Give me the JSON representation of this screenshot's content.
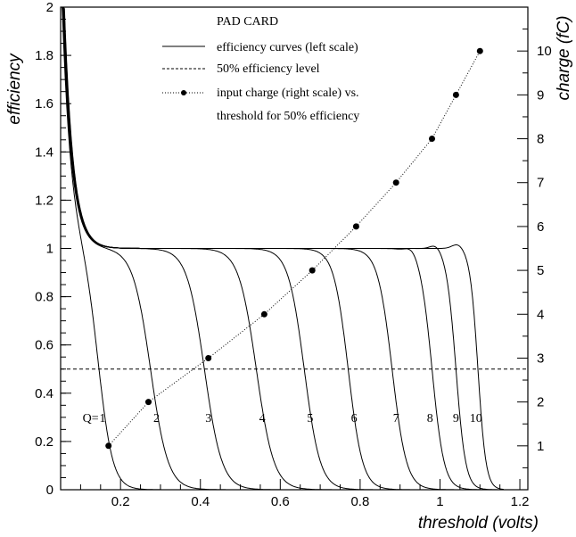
{
  "chart_data": {
    "type": "line",
    "xlabel": "threshold (volts)",
    "ylabel": "efficiency",
    "y2label": "charge (fC)",
    "xlim": [
      0.05,
      1.22
    ],
    "ylim": [
      0,
      2
    ],
    "y2lim": [
      0,
      11
    ],
    "x_ticks": [
      "0.2",
      "0.4",
      "0.6",
      "0.8",
      "1",
      "1.2"
    ],
    "y_ticks": [
      "0",
      "0.2",
      "0.4",
      "0.6",
      "0.8",
      "1",
      "1.2",
      "1.4",
      "1.6",
      "1.8",
      "2"
    ],
    "y2_ticks": [
      "1",
      "2",
      "3",
      "4",
      "5",
      "6",
      "7",
      "8",
      "9",
      "10"
    ],
    "legend_title": "PAD CARD",
    "legend": {
      "efficiency": "efficiency curves (left scale)",
      "level": "50% efficiency level",
      "charge_line1": "input charge (right scale) vs.",
      "charge_line2": "threshold for 50% efficiency"
    },
    "legend_position": "top-center",
    "q_prefix": "Q=",
    "efficiency_curves": [
      {
        "q": "1",
        "center": 0.145,
        "width": 0.018
      },
      {
        "q": "2",
        "center": 0.275,
        "width": 0.022
      },
      {
        "q": "3",
        "center": 0.41,
        "width": 0.022
      },
      {
        "q": "4",
        "center": 0.54,
        "width": 0.022
      },
      {
        "q": "5",
        "center": 0.66,
        "width": 0.02
      },
      {
        "q": "6",
        "center": 0.77,
        "width": 0.018
      },
      {
        "q": "7",
        "center": 0.88,
        "width": 0.018
      },
      {
        "q": "8",
        "center": 0.98,
        "width": 0.015
      },
      {
        "q": "9",
        "center": 1.04,
        "width": 0.012
      },
      {
        "q": "10",
        "center": 1.095,
        "width": 0.01
      }
    ],
    "efficiency_level": 0.5,
    "charge_vs_threshold": {
      "threshold": [
        0.17,
        0.27,
        0.42,
        0.56,
        0.68,
        0.79,
        0.89,
        0.98,
        1.04,
        1.1
      ],
      "charge": [
        1,
        2,
        3,
        4,
        5,
        6,
        7,
        8,
        9,
        10
      ]
    }
  }
}
